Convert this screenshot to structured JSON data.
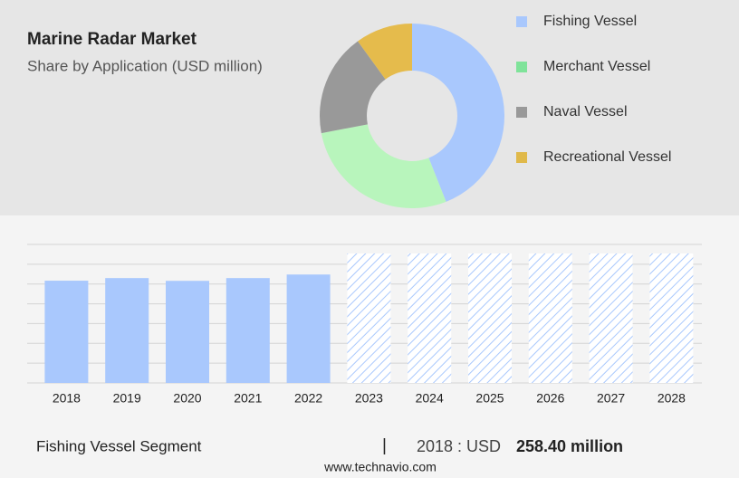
{
  "chart_data": [
    {
      "type": "pie",
      "title": "Marine Radar Market",
      "subtitle": "Share by Application (USD million)",
      "categories": [
        "Fishing Vessel",
        "Merchant Vessel",
        "Naval Vessel",
        "Recreational Vessel"
      ],
      "values": [
        44,
        28,
        18,
        10
      ],
      "colors": [
        "#a9c8fd",
        "#b8f5bc",
        "#999999",
        "#e5bb4c"
      ],
      "legend_colors": [
        "#a9c8fd",
        "#7fe39a",
        "#999999",
        "#e0b94a"
      ],
      "hole": 0.49
    },
    {
      "type": "bar",
      "categories": [
        "2018",
        "2019",
        "2020",
        "2021",
        "2022",
        "2023",
        "2024",
        "2025",
        "2026",
        "2027",
        "2028"
      ],
      "values": [
        258.4,
        265,
        258,
        265,
        274,
        null,
        null,
        null,
        null,
        null,
        null
      ],
      "color": "#a9c8fd",
      "forecast_color": "#a9c8fd",
      "ylim": [
        0,
        350
      ],
      "yticks": [
        0,
        50,
        100,
        150,
        200,
        250,
        300,
        350
      ],
      "grid": true
    }
  ],
  "footer": {
    "segment": "Fishing Vessel Segment",
    "separator": "|",
    "label": "2018 : USD",
    "value": "258.40 million",
    "source": "www.technavio.com"
  }
}
